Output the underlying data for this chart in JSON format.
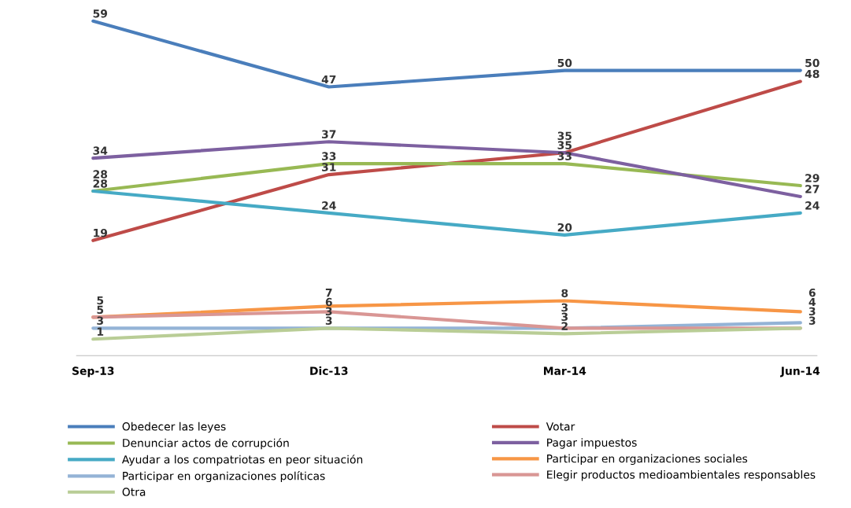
{
  "chart_data": {
    "type": "line",
    "categories": [
      "Sep-13",
      "Dic-13",
      "Mar-14",
      "Jun-14"
    ],
    "data_labels": true,
    "legend": "bottom",
    "grid": false,
    "marker": "none",
    "line_style": "solid",
    "series": [
      {
        "name": "Obedecer las leyes",
        "color": "#4a7ebb",
        "values": [
          59,
          47,
          50,
          50
        ]
      },
      {
        "name": "Votar",
        "color": "#be4b48",
        "values": [
          19,
          31,
          35,
          48
        ]
      },
      {
        "name": "Denunciar actos de corrupción",
        "color": "#98b954",
        "values": [
          28,
          33,
          33,
          29
        ]
      },
      {
        "name": "Pagar impuestos",
        "color": "#7d60a0",
        "values": [
          34,
          37,
          35,
          27
        ]
      },
      {
        "name": "Ayudar a los compatriotas en peor situación",
        "color": "#46aac5",
        "values": [
          28,
          24,
          20,
          24
        ]
      },
      {
        "name": "Participar en organizaciones sociales",
        "color": "#f79646",
        "values": [
          5,
          7,
          8,
          6
        ]
      },
      {
        "name": "Participar en organizaciones políticas",
        "color": "#94b3d6",
        "values": [
          3,
          3,
          3,
          4
        ]
      },
      {
        "name": "Elegir productos medioambientales responsables",
        "color": "#d99694",
        "values": [
          5,
          6,
          3,
          3
        ]
      },
      {
        "name": "Otra",
        "color": "#b9cd96",
        "values": [
          1,
          3,
          2,
          3
        ]
      }
    ]
  }
}
